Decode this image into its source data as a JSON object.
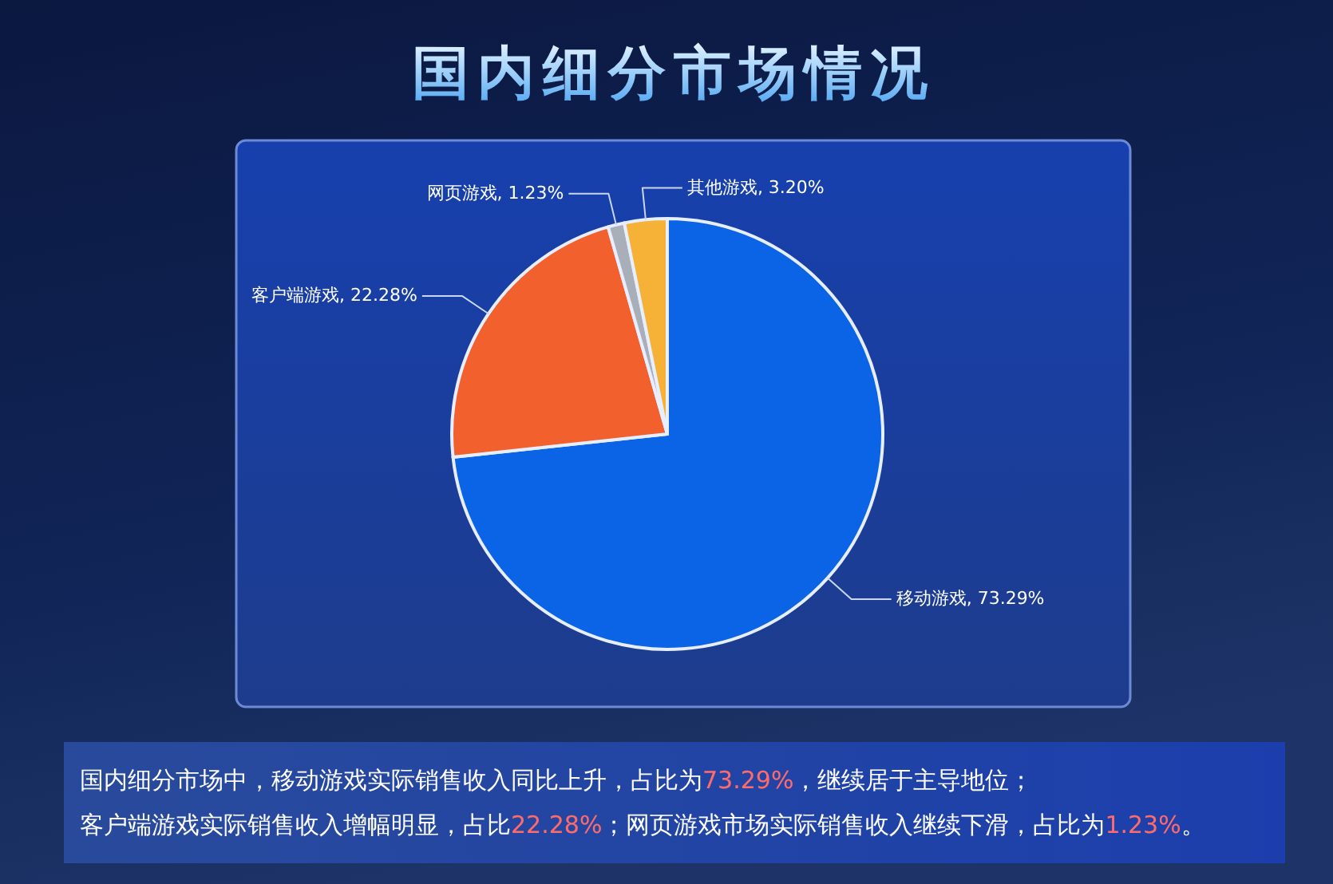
{
  "chart_data": {
    "type": "pie",
    "title": "国内细分市场情况",
    "categories": [
      "移动游戏",
      "客户端游戏",
      "网页游戏",
      "其他游戏"
    ],
    "values": [
      73.29,
      22.28,
      1.23,
      3.2
    ],
    "colors": [
      "#0b63e5",
      "#f2602d",
      "#a9afb8",
      "#f5b236"
    ],
    "value_labels": [
      "73.29%",
      "22.28%",
      "1.23%",
      "3.20%"
    ],
    "annotations": [
      "国内细分市场中，移动游戏实际销售收入同比上升，占比为73.29%，继续居于主导地位；",
      "客户端游戏实际销售收入增幅明显，占比22.28%；网页游戏市场实际销售收入继续下滑，占比为1.23%。"
    ]
  }
}
